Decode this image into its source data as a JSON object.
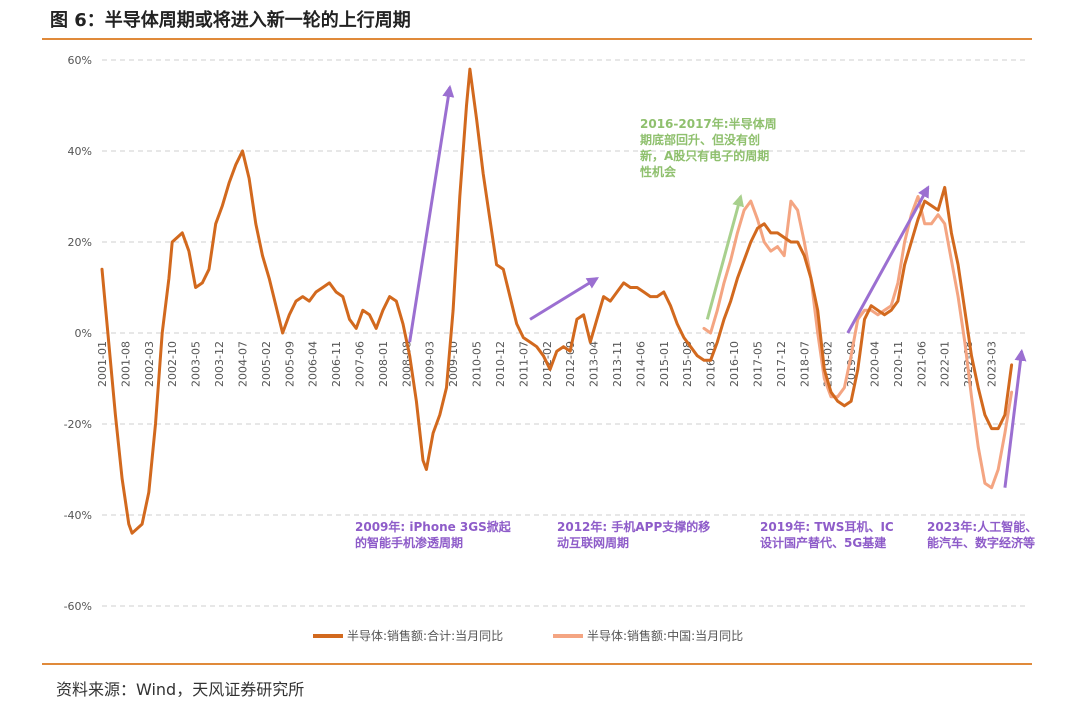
{
  "header": {
    "title": "图 6：半导体周期或将进入新一轮的上行周期"
  },
  "footer": {
    "source": "资料来源：Wind，天风证券研究所"
  },
  "chart_data": {
    "type": "line",
    "title": "",
    "xlabel": "",
    "ylabel": "",
    "ylim": [
      -60,
      60
    ],
    "yticks": [
      "60%",
      "40%",
      "20%",
      "0%",
      "-20%",
      "-40%",
      "-60%"
    ],
    "yticks_values": [
      60,
      40,
      20,
      0,
      -20,
      -40,
      -60
    ],
    "grid": "horizontal-dashed",
    "legend_position": "bottom",
    "colors": {
      "global": "#d2691e",
      "china": "#f4a582",
      "arrow_purple": "#9b6fd1",
      "arrow_green": "#a8d08d",
      "note_purple": "#8e5cc9",
      "note_green": "#8fc06e"
    },
    "x_ticks": [
      "2001-01",
      "2001-08",
      "2002-03",
      "2002-10",
      "2003-05",
      "2003-12",
      "2004-07",
      "2005-02",
      "2005-09",
      "2006-04",
      "2006-11",
      "2007-06",
      "2008-01",
      "2008-08",
      "2009-03",
      "2009-10",
      "2010-05",
      "2010-12",
      "2011-07",
      "2012-02",
      "2012-09",
      "2013-04",
      "2013-11",
      "2014-06",
      "2015-01",
      "2015-08",
      "2016-03",
      "2016-10",
      "2017-05",
      "2017-12",
      "2018-07",
      "2019-02",
      "2019-09",
      "2020-04",
      "2020-11",
      "2021-06",
      "2022-01",
      "2022-08",
      "2023-03"
    ],
    "series": [
      {
        "name": "半导体:销售额:合计:当月同比",
        "points": [
          [
            "2001-01",
            14
          ],
          [
            "2001-03",
            -2
          ],
          [
            "2001-05",
            -18
          ],
          [
            "2001-07",
            -32
          ],
          [
            "2001-09",
            -42
          ],
          [
            "2001-10",
            -44
          ],
          [
            "2002-01",
            -42
          ],
          [
            "2002-03",
            -35
          ],
          [
            "2002-05",
            -20
          ],
          [
            "2002-07",
            0
          ],
          [
            "2002-09",
            12
          ],
          [
            "2002-10",
            20
          ],
          [
            "2003-01",
            22
          ],
          [
            "2003-03",
            18
          ],
          [
            "2003-05",
            10
          ],
          [
            "2003-07",
            11
          ],
          [
            "2003-09",
            14
          ],
          [
            "2003-11",
            24
          ],
          [
            "2004-01",
            28
          ],
          [
            "2004-03",
            33
          ],
          [
            "2004-05",
            37
          ],
          [
            "2004-07",
            40
          ],
          [
            "2004-09",
            34
          ],
          [
            "2004-11",
            24
          ],
          [
            "2005-01",
            17
          ],
          [
            "2005-03",
            12
          ],
          [
            "2005-05",
            6
          ],
          [
            "2005-07",
            0
          ],
          [
            "2005-09",
            4
          ],
          [
            "2005-11",
            7
          ],
          [
            "2006-01",
            8
          ],
          [
            "2006-03",
            7
          ],
          [
            "2006-05",
            9
          ],
          [
            "2006-07",
            10
          ],
          [
            "2006-09",
            11
          ],
          [
            "2006-11",
            9
          ],
          [
            "2007-01",
            8
          ],
          [
            "2007-03",
            3
          ],
          [
            "2007-05",
            1
          ],
          [
            "2007-07",
            5
          ],
          [
            "2007-09",
            4
          ],
          [
            "2007-11",
            1
          ],
          [
            "2008-01",
            5
          ],
          [
            "2008-03",
            8
          ],
          [
            "2008-05",
            7
          ],
          [
            "2008-07",
            2
          ],
          [
            "2008-09",
            -5
          ],
          [
            "2008-11",
            -15
          ],
          [
            "2009-01",
            -28
          ],
          [
            "2009-02",
            -30
          ],
          [
            "2009-04",
            -22
          ],
          [
            "2009-06",
            -18
          ],
          [
            "2009-08",
            -12
          ],
          [
            "2009-10",
            5
          ],
          [
            "2009-12",
            30
          ],
          [
            "2010-02",
            50
          ],
          [
            "2010-03",
            58
          ],
          [
            "2010-05",
            47
          ],
          [
            "2010-07",
            35
          ],
          [
            "2010-09",
            25
          ],
          [
            "2010-11",
            15
          ],
          [
            "2011-01",
            14
          ],
          [
            "2011-03",
            8
          ],
          [
            "2011-05",
            2
          ],
          [
            "2011-07",
            -1
          ],
          [
            "2011-09",
            -2
          ],
          [
            "2011-11",
            -3
          ],
          [
            "2012-01",
            -5
          ],
          [
            "2012-03",
            -8
          ],
          [
            "2012-05",
            -4
          ],
          [
            "2012-07",
            -3
          ],
          [
            "2012-09",
            -4
          ],
          [
            "2012-11",
            3
          ],
          [
            "2013-01",
            4
          ],
          [
            "2013-03",
            -2
          ],
          [
            "2013-05",
            3
          ],
          [
            "2013-07",
            8
          ],
          [
            "2013-09",
            7
          ],
          [
            "2013-11",
            9
          ],
          [
            "2014-01",
            11
          ],
          [
            "2014-03",
            10
          ],
          [
            "2014-05",
            10
          ],
          [
            "2014-07",
            9
          ],
          [
            "2014-09",
            8
          ],
          [
            "2014-11",
            8
          ],
          [
            "2015-01",
            9
          ],
          [
            "2015-03",
            6
          ],
          [
            "2015-05",
            2
          ],
          [
            "2015-07",
            -1
          ],
          [
            "2015-09",
            -3
          ],
          [
            "2015-11",
            -5
          ],
          [
            "2016-01",
            -6
          ],
          [
            "2016-03",
            -6
          ],
          [
            "2016-05",
            -2
          ],
          [
            "2016-07",
            3
          ],
          [
            "2016-09",
            7
          ],
          [
            "2016-11",
            12
          ],
          [
            "2017-01",
            16
          ],
          [
            "2017-03",
            20
          ],
          [
            "2017-05",
            23
          ],
          [
            "2017-07",
            24
          ],
          [
            "2017-09",
            22
          ],
          [
            "2017-11",
            22
          ],
          [
            "2018-01",
            21
          ],
          [
            "2018-03",
            20
          ],
          [
            "2018-05",
            20
          ],
          [
            "2018-07",
            17
          ],
          [
            "2018-09",
            12
          ],
          [
            "2018-11",
            5
          ],
          [
            "2019-01",
            -8
          ],
          [
            "2019-03",
            -13
          ],
          [
            "2019-05",
            -15
          ],
          [
            "2019-07",
            -16
          ],
          [
            "2019-09",
            -15
          ],
          [
            "2019-11",
            -8
          ],
          [
            "2020-01",
            3
          ],
          [
            "2020-03",
            6
          ],
          [
            "2020-05",
            5
          ],
          [
            "2020-07",
            4
          ],
          [
            "2020-09",
            5
          ],
          [
            "2020-11",
            7
          ],
          [
            "2021-01",
            15
          ],
          [
            "2021-03",
            20
          ],
          [
            "2021-05",
            25
          ],
          [
            "2021-07",
            29
          ],
          [
            "2021-09",
            28
          ],
          [
            "2021-11",
            27
          ],
          [
            "2022-01",
            32
          ],
          [
            "2022-03",
            22
          ],
          [
            "2022-05",
            15
          ],
          [
            "2022-07",
            5
          ],
          [
            "2022-09",
            -5
          ],
          [
            "2022-11",
            -12
          ],
          [
            "2023-01",
            -18
          ],
          [
            "2023-03",
            -21
          ],
          [
            "2023-05",
            -21
          ],
          [
            "2023-07",
            -18
          ],
          [
            "2023-09",
            -7
          ]
        ]
      },
      {
        "name": "半导体:销售额:中国:当月同比",
        "points": [
          [
            "2016-01",
            1
          ],
          [
            "2016-03",
            0
          ],
          [
            "2016-05",
            5
          ],
          [
            "2016-07",
            11
          ],
          [
            "2016-09",
            16
          ],
          [
            "2016-11",
            22
          ],
          [
            "2017-01",
            27
          ],
          [
            "2017-03",
            29
          ],
          [
            "2017-05",
            25
          ],
          [
            "2017-07",
            20
          ],
          [
            "2017-09",
            18
          ],
          [
            "2017-11",
            19
          ],
          [
            "2018-01",
            17
          ],
          [
            "2018-03",
            29
          ],
          [
            "2018-05",
            27
          ],
          [
            "2018-07",
            20
          ],
          [
            "2018-09",
            12
          ],
          [
            "2018-11",
            0
          ],
          [
            "2019-01",
            -10
          ],
          [
            "2019-03",
            -14
          ],
          [
            "2019-05",
            -14
          ],
          [
            "2019-07",
            -12
          ],
          [
            "2019-09",
            -5
          ],
          [
            "2019-11",
            3
          ],
          [
            "2020-01",
            5
          ],
          [
            "2020-03",
            5
          ],
          [
            "2020-05",
            4
          ],
          [
            "2020-07",
            5
          ],
          [
            "2020-09",
            6
          ],
          [
            "2020-11",
            11
          ],
          [
            "2021-01",
            20
          ],
          [
            "2021-03",
            26
          ],
          [
            "2021-05",
            30
          ],
          [
            "2021-07",
            24
          ],
          [
            "2021-09",
            24
          ],
          [
            "2021-11",
            26
          ],
          [
            "2022-01",
            24
          ],
          [
            "2022-03",
            16
          ],
          [
            "2022-05",
            8
          ],
          [
            "2022-07",
            -2
          ],
          [
            "2022-09",
            -14
          ],
          [
            "2022-11",
            -25
          ],
          [
            "2023-01",
            -33
          ],
          [
            "2023-03",
            -34
          ],
          [
            "2023-05",
            -30
          ],
          [
            "2023-07",
            -22
          ],
          [
            "2023-09",
            -13
          ]
        ]
      }
    ],
    "annotations": [
      {
        "text": "2009年: iPhone 3GS掀起的智能手机渗透周期",
        "lines": [
          "2009年: iPhone 3GS掀起",
          "的智能手机渗透周期"
        ],
        "color": "purple"
      },
      {
        "text": "2012年: 手机APP支撑的移动互联网周期",
        "lines": [
          "2012年: 手机APP支撑的移",
          "动互联网周期"
        ],
        "color": "purple"
      },
      {
        "text": "2016-2017年:半导体周期底部回升、但没有创新，A股只有电子的周期性机会",
        "lines": [
          "2016-2017年:半导体周",
          "期底部回升、但没有创",
          "新，A股只有电子的周期",
          "性机会"
        ],
        "color": "green"
      },
      {
        "text": "2019年: TWS耳机、IC设计国产替代、5G基建",
        "lines": [
          "2019年: TWS耳机、IC",
          "设计国产替代、5G基建"
        ],
        "color": "purple"
      },
      {
        "text": "2023年:人工智能、能汽车、数字经济等",
        "lines": [
          "2023年:人工智能、",
          "能汽车、数字经济等"
        ],
        "color": "purple"
      }
    ],
    "arrows": [
      {
        "from": [
          "2008-09",
          -2
        ],
        "to": [
          "2009-09",
          54
        ],
        "color": "purple"
      },
      {
        "from": [
          "2011-09",
          3
        ],
        "to": [
          "2013-05",
          12
        ],
        "color": "purple"
      },
      {
        "from": [
          "2016-02",
          3
        ],
        "to": [
          "2016-12",
          30
        ],
        "color": "green"
      },
      {
        "from": [
          "2019-08",
          0
        ],
        "to": [
          "2021-08",
          32
        ],
        "color": "purple"
      },
      {
        "from": [
          "2023-07",
          -34
        ],
        "to": [
          "2023-12",
          -4
        ],
        "color": "purple"
      }
    ]
  }
}
